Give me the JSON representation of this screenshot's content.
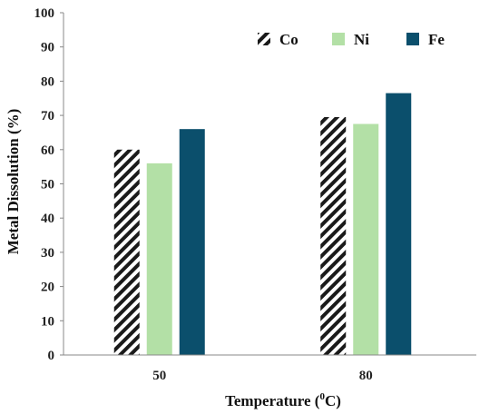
{
  "chart_data": {
    "type": "bar",
    "categories": [
      "50",
      "80"
    ],
    "series": [
      {
        "name": "Co",
        "values": [
          60,
          69.5
        ],
        "pattern": "diagonal-hatch"
      },
      {
        "name": "Ni",
        "values": [
          56,
          67.5
        ]
      },
      {
        "name": "Fe",
        "values": [
          66,
          76.5
        ]
      }
    ],
    "xlabel_main": "Temperature (",
    "xlabel_sup": "0",
    "xlabel_end": "C)",
    "ylabel": "Metal Dissolution (%)",
    "ylim": [
      0,
      100
    ],
    "yticks": [
      "0",
      "10",
      "20",
      "30",
      "40",
      "50",
      "60",
      "70",
      "80",
      "90",
      "100"
    ],
    "grid": false,
    "legend_position": "top-right",
    "colors": {
      "Co": "#1a1a1a",
      "Ni": "#b3e0a6",
      "Fe": "#0b4f6c",
      "axis": "#888888"
    }
  }
}
